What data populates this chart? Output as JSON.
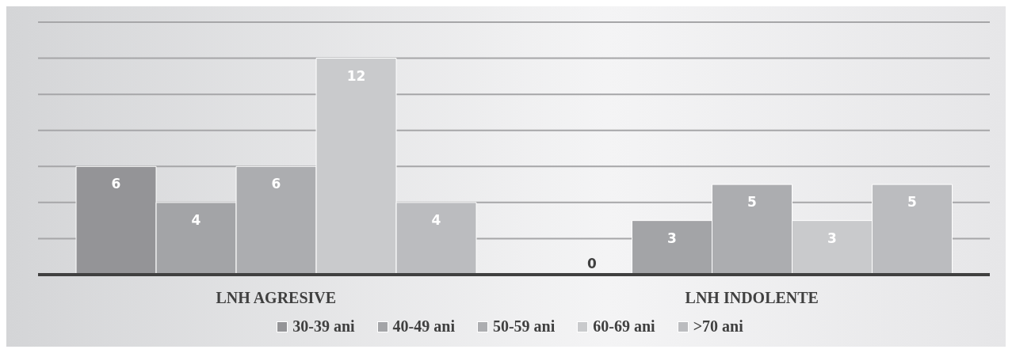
{
  "chart_data": {
    "type": "bar",
    "categories": [
      "LNH AGRESIVE",
      "LNH INDOLENTE"
    ],
    "series": [
      {
        "name": "30-39 ani",
        "color": "#949497",
        "values": [
          6,
          0
        ]
      },
      {
        "name": "40-49 ani",
        "color": "#a3a4a7",
        "values": [
          4,
          3
        ]
      },
      {
        "name": "50-59 ani",
        "color": "#acadb0",
        "values": [
          6,
          5
        ]
      },
      {
        "name": "60-69 ani",
        "color": "#c9cacc",
        "values": [
          12,
          3
        ]
      },
      {
        "name": ">70 ani",
        "color": "#bbbcbf",
        "values": [
          4,
          5
        ]
      }
    ],
    "ylim": [
      0,
      14
    ],
    "yticks": [
      {
        "value": 0,
        "label": null
      },
      {
        "value": 2,
        "label": null
      },
      {
        "value": 4,
        "label": null
      },
      {
        "value": 6,
        "label": null
      },
      {
        "value": 8,
        "label": null
      },
      {
        "value": 10,
        "label": null
      },
      {
        "value": 12,
        "label": null
      },
      {
        "value": 14,
        "label": null
      }
    ],
    "tick_labels": "x",
    "grid": "y",
    "legend": "bottom",
    "data_labels": true
  }
}
